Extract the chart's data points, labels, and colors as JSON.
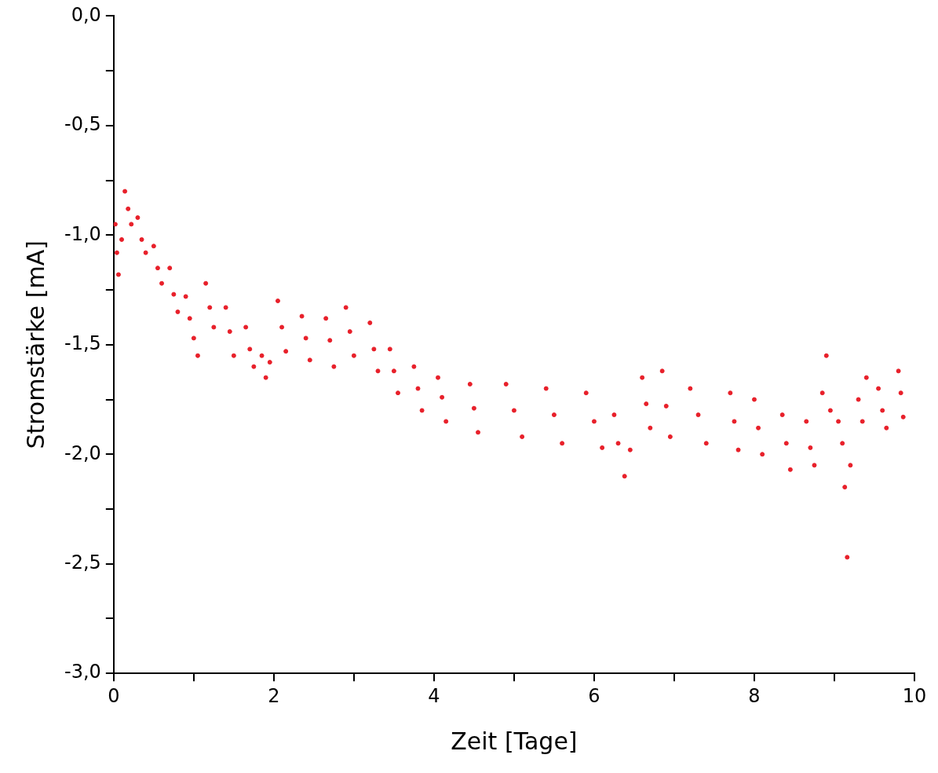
{
  "chart_data": {
    "type": "scatter",
    "xlabel": "Zeit [Tage]",
    "ylabel": "Stromstärke [mA]",
    "xlim": [
      0,
      10
    ],
    "xticks": [
      0,
      {
        "value": 1,
        "label": null
      },
      2,
      {
        "value": 3,
        "label": null
      },
      4,
      {
        "value": 5,
        "label": null
      },
      6,
      {
        "value": 7,
        "label": null
      },
      8,
      {
        "value": 9,
        "label": null
      },
      10
    ],
    "ylim": [
      -3,
      0
    ],
    "yticks": [
      {
        "value": -3,
        "label": "-3,0"
      },
      {
        "value": -2.75,
        "label": null
      },
      {
        "value": -2.5,
        "label": "-2,5"
      },
      {
        "value": -2.25,
        "label": null
      },
      {
        "value": -2,
        "label": "-2,0"
      },
      {
        "value": -1.75,
        "label": null
      },
      {
        "value": -1.5,
        "label": "-1,5"
      },
      {
        "value": -1.25,
        "label": null
      },
      {
        "value": -1,
        "label": "-1,0"
      },
      {
        "value": -0.75,
        "label": null
      },
      {
        "value": -0.5,
        "label": "-0,5"
      },
      {
        "value": -0.25,
        "label": null
      },
      {
        "value": 0,
        "label": "0,0"
      }
    ],
    "grid": false,
    "legend": false,
    "marker": "circle",
    "series": [
      {
        "color": "#e8202a",
        "x": [
          0.02,
          0.04,
          0.06,
          0.1,
          0.14,
          0.18,
          0.22,
          0.3,
          0.35,
          0.4,
          0.5,
          0.55,
          0.6,
          0.7,
          0.75,
          0.8,
          0.9,
          0.95,
          1.0,
          1.05,
          1.15,
          1.2,
          1.25,
          1.4,
          1.45,
          1.5,
          1.65,
          1.7,
          1.75,
          1.85,
          1.9,
          1.95,
          2.05,
          2.1,
          2.15,
          2.35,
          2.4,
          2.45,
          2.65,
          2.7,
          2.75,
          2.9,
          2.95,
          3.0,
          3.2,
          3.25,
          3.3,
          3.45,
          3.5,
          3.55,
          3.75,
          3.8,
          3.85,
          4.05,
          4.1,
          4.15,
          4.45,
          4.5,
          4.55,
          4.9,
          5.0,
          5.1,
          5.4,
          5.5,
          5.6,
          5.9,
          6.0,
          6.1,
          6.25,
          6.3,
          6.38,
          6.45,
          6.6,
          6.65,
          6.7,
          6.85,
          6.9,
          6.95,
          7.2,
          7.3,
          7.4,
          7.7,
          7.75,
          7.8,
          8.0,
          8.05,
          8.1,
          8.35,
          8.4,
          8.45,
          8.65,
          8.7,
          8.75,
          8.85,
          8.9,
          8.95,
          9.05,
          9.1,
          9.13,
          9.16,
          9.2,
          9.3,
          9.35,
          9.4,
          9.55,
          9.6,
          9.65,
          9.8,
          9.83,
          9.86
        ],
        "values": [
          -0.95,
          -1.08,
          -1.18,
          -1.02,
          -0.8,
          -0.88,
          -0.95,
          -0.92,
          -1.02,
          -1.08,
          -1.05,
          -1.15,
          -1.22,
          -1.15,
          -1.27,
          -1.35,
          -1.28,
          -1.38,
          -1.47,
          -1.55,
          -1.22,
          -1.33,
          -1.42,
          -1.33,
          -1.44,
          -1.55,
          -1.42,
          -1.52,
          -1.6,
          -1.55,
          -1.65,
          -1.58,
          -1.3,
          -1.42,
          -1.53,
          -1.37,
          -1.47,
          -1.57,
          -1.38,
          -1.48,
          -1.6,
          -1.33,
          -1.44,
          -1.55,
          -1.4,
          -1.52,
          -1.62,
          -1.52,
          -1.62,
          -1.72,
          -1.6,
          -1.7,
          -1.8,
          -1.65,
          -1.74,
          -1.85,
          -1.68,
          -1.79,
          -1.9,
          -1.68,
          -1.8,
          -1.92,
          -1.7,
          -1.82,
          -1.95,
          -1.72,
          -1.85,
          -1.97,
          -1.82,
          -1.95,
          -2.1,
          -1.98,
          -1.65,
          -1.77,
          -1.88,
          -1.62,
          -1.78,
          -1.92,
          -1.7,
          -1.82,
          -1.95,
          -1.72,
          -1.85,
          -1.98,
          -1.75,
          -1.88,
          -2.0,
          -1.82,
          -1.95,
          -2.07,
          -1.85,
          -1.97,
          -2.05,
          -1.72,
          -1.55,
          -1.8,
          -1.85,
          -1.95,
          -2.15,
          -2.47,
          -2.05,
          -1.75,
          -1.85,
          -1.65,
          -1.7,
          -1.8,
          -1.88,
          -1.62,
          -1.72,
          -1.83
        ]
      }
    ]
  }
}
